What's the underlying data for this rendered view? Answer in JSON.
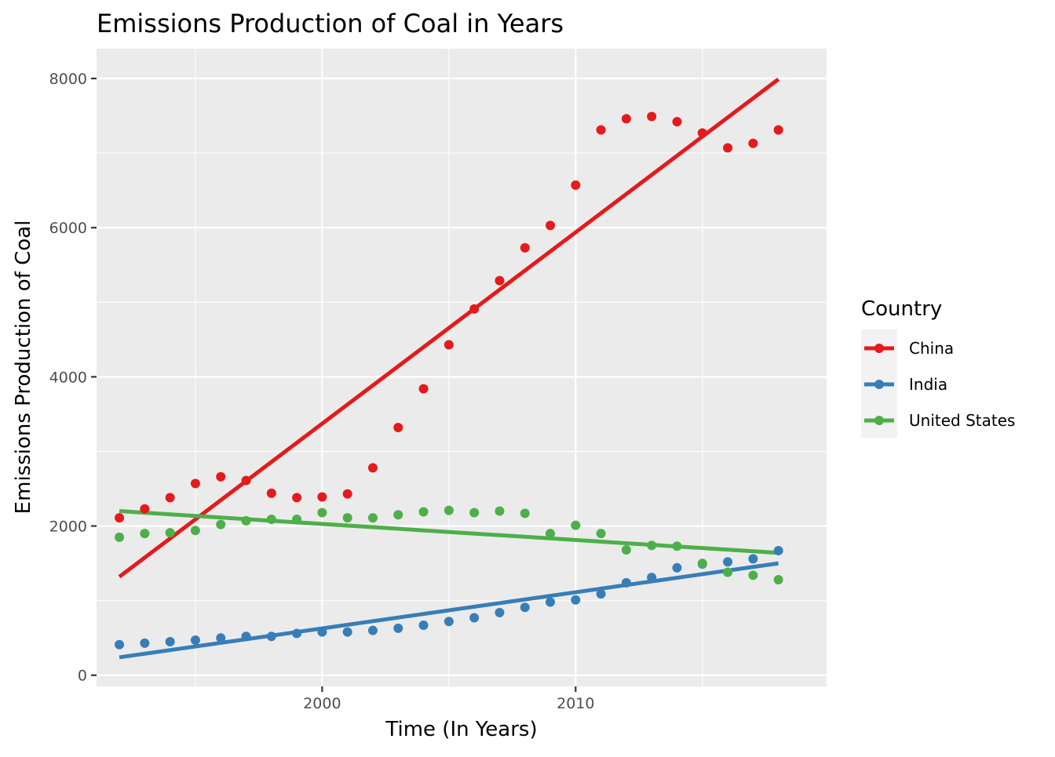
{
  "chart_data": {
    "type": "scatter",
    "title": "Emissions Production of Coal in Years",
    "xlabel": "Time (In Years)",
    "ylabel": "Emissions Production of Coal",
    "xlim": [
      1991.1,
      2019.9
    ],
    "ylim": [
      -150,
      8400
    ],
    "x_ticks": [
      2000,
      2010
    ],
    "x_tick_labels": [
      "2000",
      "2010"
    ],
    "x_minor_ticks": [
      1995,
      2005,
      2015
    ],
    "y_ticks": [
      0,
      2000,
      4000,
      6000,
      8000
    ],
    "y_tick_labels": [
      "0",
      "2000",
      "4000",
      "6000",
      "8000"
    ],
    "y_minor_ticks": [
      1000,
      3000,
      5000,
      7000
    ],
    "grid": true,
    "panel_background": "#ebebeb",
    "legend": {
      "title": "Country",
      "placement": "right"
    },
    "x": [
      1992,
      1993,
      1994,
      1995,
      1996,
      1997,
      1998,
      1999,
      2000,
      2001,
      2002,
      2003,
      2004,
      2005,
      2006,
      2007,
      2008,
      2009,
      2010,
      2011,
      2012,
      2013,
      2014,
      2015,
      2016,
      2017,
      2018
    ],
    "series": [
      {
        "name": "China",
        "color": "#e41a1c",
        "values": [
          2110,
          2230,
          2380,
          2570,
          2660,
          2610,
          2440,
          2380,
          2390,
          2430,
          2780,
          3320,
          3840,
          4430,
          4910,
          5290,
          5730,
          6030,
          6570,
          7310,
          7460,
          7490,
          7420,
          7270,
          7070,
          7130,
          7310
        ],
        "trend": [
          1320,
          7990
        ]
      },
      {
        "name": "India",
        "color": "#377eb8",
        "values": [
          410,
          430,
          450,
          470,
          500,
          520,
          520,
          560,
          580,
          580,
          600,
          630,
          670,
          720,
          770,
          840,
          910,
          980,
          1010,
          1090,
          1240,
          1310,
          1440,
          1490,
          1520,
          1560,
          1670
        ],
        "trend": [
          240,
          1500
        ]
      },
      {
        "name": "United States",
        "color": "#4daf4a",
        "values": [
          1850,
          1900,
          1910,
          1940,
          2020,
          2070,
          2090,
          2090,
          2180,
          2110,
          2110,
          2150,
          2190,
          2210,
          2180,
          2200,
          2170,
          1900,
          2010,
          1900,
          1680,
          1740,
          1730,
          1500,
          1380,
          1340,
          1280
        ],
        "trend": [
          2200,
          1640
        ]
      }
    ]
  }
}
